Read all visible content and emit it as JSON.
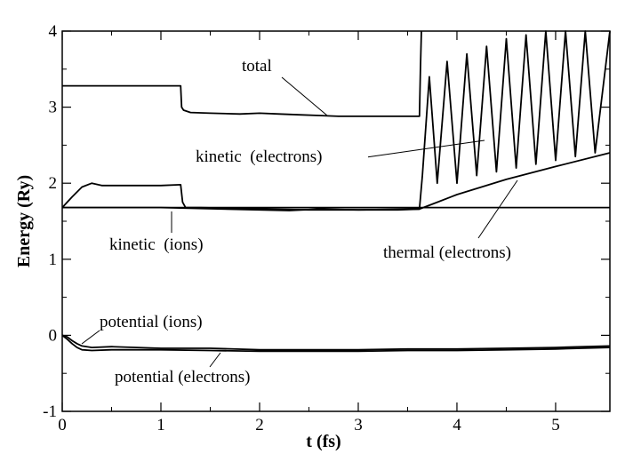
{
  "chart_data": {
    "type": "line",
    "title": "",
    "xlabel": "t (fs)",
    "ylabel": "Energy (Ry)",
    "xlim": [
      0,
      5.55
    ],
    "ylim": [
      -1,
      4
    ],
    "x_ticks": [
      0,
      1,
      2,
      3,
      4,
      5
    ],
    "y_ticks": [
      -1,
      0,
      1,
      2,
      3,
      4
    ],
    "x_tick_labels": [
      "0",
      "1",
      "2",
      "3",
      "4",
      "5"
    ],
    "y_tick_labels": [
      "-1",
      "0",
      "1",
      "2",
      "3",
      "4"
    ],
    "grid": false,
    "legend": "none",
    "series": [
      {
        "name": "total",
        "x": [
          0,
          1.2,
          1.21,
          1.23,
          1.3,
          1.5,
          1.8,
          2.0,
          2.2,
          2.4,
          2.6,
          2.8,
          3.0,
          3.2,
          3.4,
          3.62,
          3.63,
          3.64
        ],
        "y": [
          3.28,
          3.28,
          3.0,
          2.96,
          2.93,
          2.92,
          2.91,
          2.92,
          2.91,
          2.9,
          2.89,
          2.88,
          2.88,
          2.88,
          2.88,
          2.88,
          3.5,
          4.0
        ]
      },
      {
        "name": "kinetic (electrons)",
        "x": [
          0,
          0.1,
          0.2,
          0.3,
          0.4,
          0.6,
          0.8,
          1.0,
          1.2,
          1.22,
          1.25,
          1.4,
          2.0,
          2.5,
          3.0,
          3.4,
          3.62,
          3.65,
          3.72,
          3.8,
          3.9,
          4.0,
          4.1,
          4.2,
          4.3,
          4.4,
          4.5,
          4.6,
          4.7,
          4.8,
          4.9,
          5.0,
          5.1,
          5.2,
          5.3,
          5.4,
          5.55
        ],
        "y": [
          1.68,
          1.82,
          1.95,
          2.0,
          1.97,
          1.97,
          1.97,
          1.97,
          1.98,
          1.75,
          1.68,
          1.68,
          1.66,
          1.65,
          1.65,
          1.65,
          1.66,
          2.1,
          3.4,
          2.0,
          3.6,
          2.0,
          3.7,
          2.1,
          3.8,
          2.15,
          3.9,
          2.2,
          3.95,
          2.25,
          4.0,
          2.3,
          4.0,
          2.35,
          4.0,
          2.4,
          4.0
        ]
      },
      {
        "name": "thermal (electrons)",
        "x": [
          0,
          1.0,
          2.0,
          2.3,
          2.6,
          3.0,
          3.62,
          3.7,
          3.8,
          4.0,
          4.5,
          5.0,
          5.55
        ],
        "y": [
          1.68,
          1.68,
          1.65,
          1.64,
          1.66,
          1.65,
          1.66,
          1.7,
          1.75,
          1.85,
          2.05,
          2.22,
          2.4
        ]
      },
      {
        "name": "kinetic (ions)",
        "x": [
          0,
          1,
          2,
          3,
          4,
          5,
          5.55
        ],
        "y": [
          1.68,
          1.68,
          1.68,
          1.68,
          1.68,
          1.68,
          1.68
        ]
      },
      {
        "name": "potential (ions)",
        "x": [
          0,
          0.05,
          0.1,
          0.15,
          0.2,
          0.3,
          0.5,
          1.0,
          1.5,
          2.0,
          2.5,
          3.0,
          3.5,
          4.0,
          4.5,
          5.0,
          5.55
        ],
        "y": [
          0.0,
          -0.02,
          -0.07,
          -0.11,
          -0.14,
          -0.16,
          -0.15,
          -0.17,
          -0.17,
          -0.19,
          -0.19,
          -0.19,
          -0.18,
          -0.18,
          -0.17,
          -0.16,
          -0.14
        ]
      },
      {
        "name": "potential (electrons)",
        "x": [
          0,
          0.05,
          0.1,
          0.15,
          0.2,
          0.3,
          0.5,
          1.0,
          1.5,
          2.0,
          2.5,
          3.0,
          3.5,
          4.0,
          4.5,
          5.0,
          5.55
        ],
        "y": [
          0.0,
          -0.05,
          -0.11,
          -0.16,
          -0.19,
          -0.2,
          -0.19,
          -0.19,
          -0.2,
          -0.21,
          -0.21,
          -0.21,
          -0.2,
          -0.2,
          -0.19,
          -0.18,
          -0.16
        ]
      }
    ],
    "annotations": [
      {
        "text": "total",
        "series": "total"
      },
      {
        "text": "kinetic  (electrons)",
        "series": "kinetic (electrons)"
      },
      {
        "text": "kinetic  (ions)",
        "series": "kinetic (ions)"
      },
      {
        "text": "thermal (electrons)",
        "series": "thermal (electrons)"
      },
      {
        "text": "potential (ions)",
        "series": "potential (ions)"
      },
      {
        "text": "potential (electrons)",
        "series": "potential (electrons)"
      }
    ]
  }
}
